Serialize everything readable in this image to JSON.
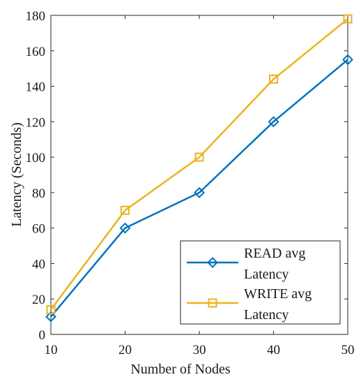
{
  "chart_data": {
    "type": "line",
    "xlabel": "Number of Nodes",
    "ylabel": "Latency (Seconds)",
    "x": [
      10,
      20,
      30,
      40,
      50
    ],
    "xlim": [
      10,
      50
    ],
    "ylim": [
      0,
      180
    ],
    "xticks": [
      10,
      20,
      30,
      40,
      50
    ],
    "yticks": [
      0,
      20,
      40,
      60,
      80,
      100,
      120,
      140,
      160,
      180
    ],
    "grid": false,
    "legend_position": "bottom-right",
    "series": [
      {
        "name_lines": [
          "READ avg",
          " Latency"
        ],
        "values": [
          10,
          60,
          80,
          120,
          155
        ],
        "color": "#0072BD",
        "marker": "diamond"
      },
      {
        "name_lines": [
          "WRITE avg",
          "Latency"
        ],
        "values": [
          14,
          70,
          100,
          144,
          178
        ],
        "color": "#EDB120",
        "marker": "square"
      }
    ]
  }
}
